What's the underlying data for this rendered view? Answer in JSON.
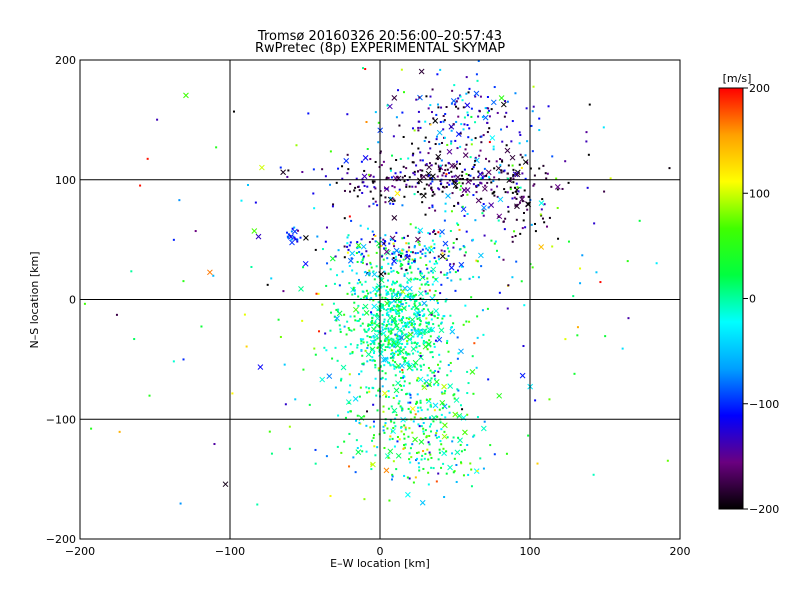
{
  "chart_data": {
    "type": "scatter",
    "title": "Tromsø 20160326 20:56:00–20:57:43",
    "subtitle": "RwPretec (8p) EXPERIMENTAL SKYMAP",
    "xlabel": "E–W location [km]",
    "ylabel": "N–S location [km]",
    "xlim": [
      -200,
      200
    ],
    "ylim": [
      -200,
      200
    ],
    "xticks": [
      -200,
      -100,
      0,
      100,
      200
    ],
    "yticks": [
      -200,
      -100,
      0,
      100,
      200
    ],
    "grid": true,
    "colorbar": {
      "label": "[m/s]",
      "min": -200,
      "max": 200,
      "ticks": [
        200,
        100,
        0,
        -100,
        -200
      ],
      "colormap": [
        "#000000",
        "#6a0080",
        "#0000ff",
        "#00a0ff",
        "#00ffff",
        "#00ff40",
        "#40ff00",
        "#ffff00",
        "#ffa000",
        "#ff0000"
      ]
    },
    "markers": [
      "dot",
      "x"
    ],
    "clusters": [
      {
        "x": 10,
        "y": -20,
        "sx": 18,
        "sy": 25,
        "n": 700,
        "v": 0,
        "vs": 30
      },
      {
        "x": 15,
        "y": -90,
        "sx": 25,
        "sy": 30,
        "n": 250,
        "v": 10,
        "vs": 50
      },
      {
        "x": 40,
        "y": 100,
        "sx": 40,
        "sy": 12,
        "n": 300,
        "v": -170,
        "vs": 40
      },
      {
        "x": 55,
        "y": 150,
        "sx": 25,
        "sy": 18,
        "n": 160,
        "v": -120,
        "vs": 60
      },
      {
        "x": 15,
        "y": 38,
        "sx": 25,
        "sy": 10,
        "n": 180,
        "v": -60,
        "vs": 80
      },
      {
        "x": 35,
        "y": -125,
        "sx": 20,
        "sy": 15,
        "n": 100,
        "v": 20,
        "vs": 70
      },
      {
        "x": 95,
        "y": 85,
        "sx": 12,
        "sy": 15,
        "n": 60,
        "v": -190,
        "vs": 20
      },
      {
        "x": -58,
        "y": 53,
        "sx": 3,
        "sy": 3,
        "n": 20,
        "v": -100,
        "vs": 20
      },
      {
        "x": 40,
        "y": 35,
        "sx": 40,
        "sy": 60,
        "n": 200,
        "v": -40,
        "vs": 90
      },
      {
        "x": 0,
        "y": 0,
        "sx": 110,
        "sy": 100,
        "n": 180,
        "v": 0,
        "vs": 110
      }
    ]
  }
}
